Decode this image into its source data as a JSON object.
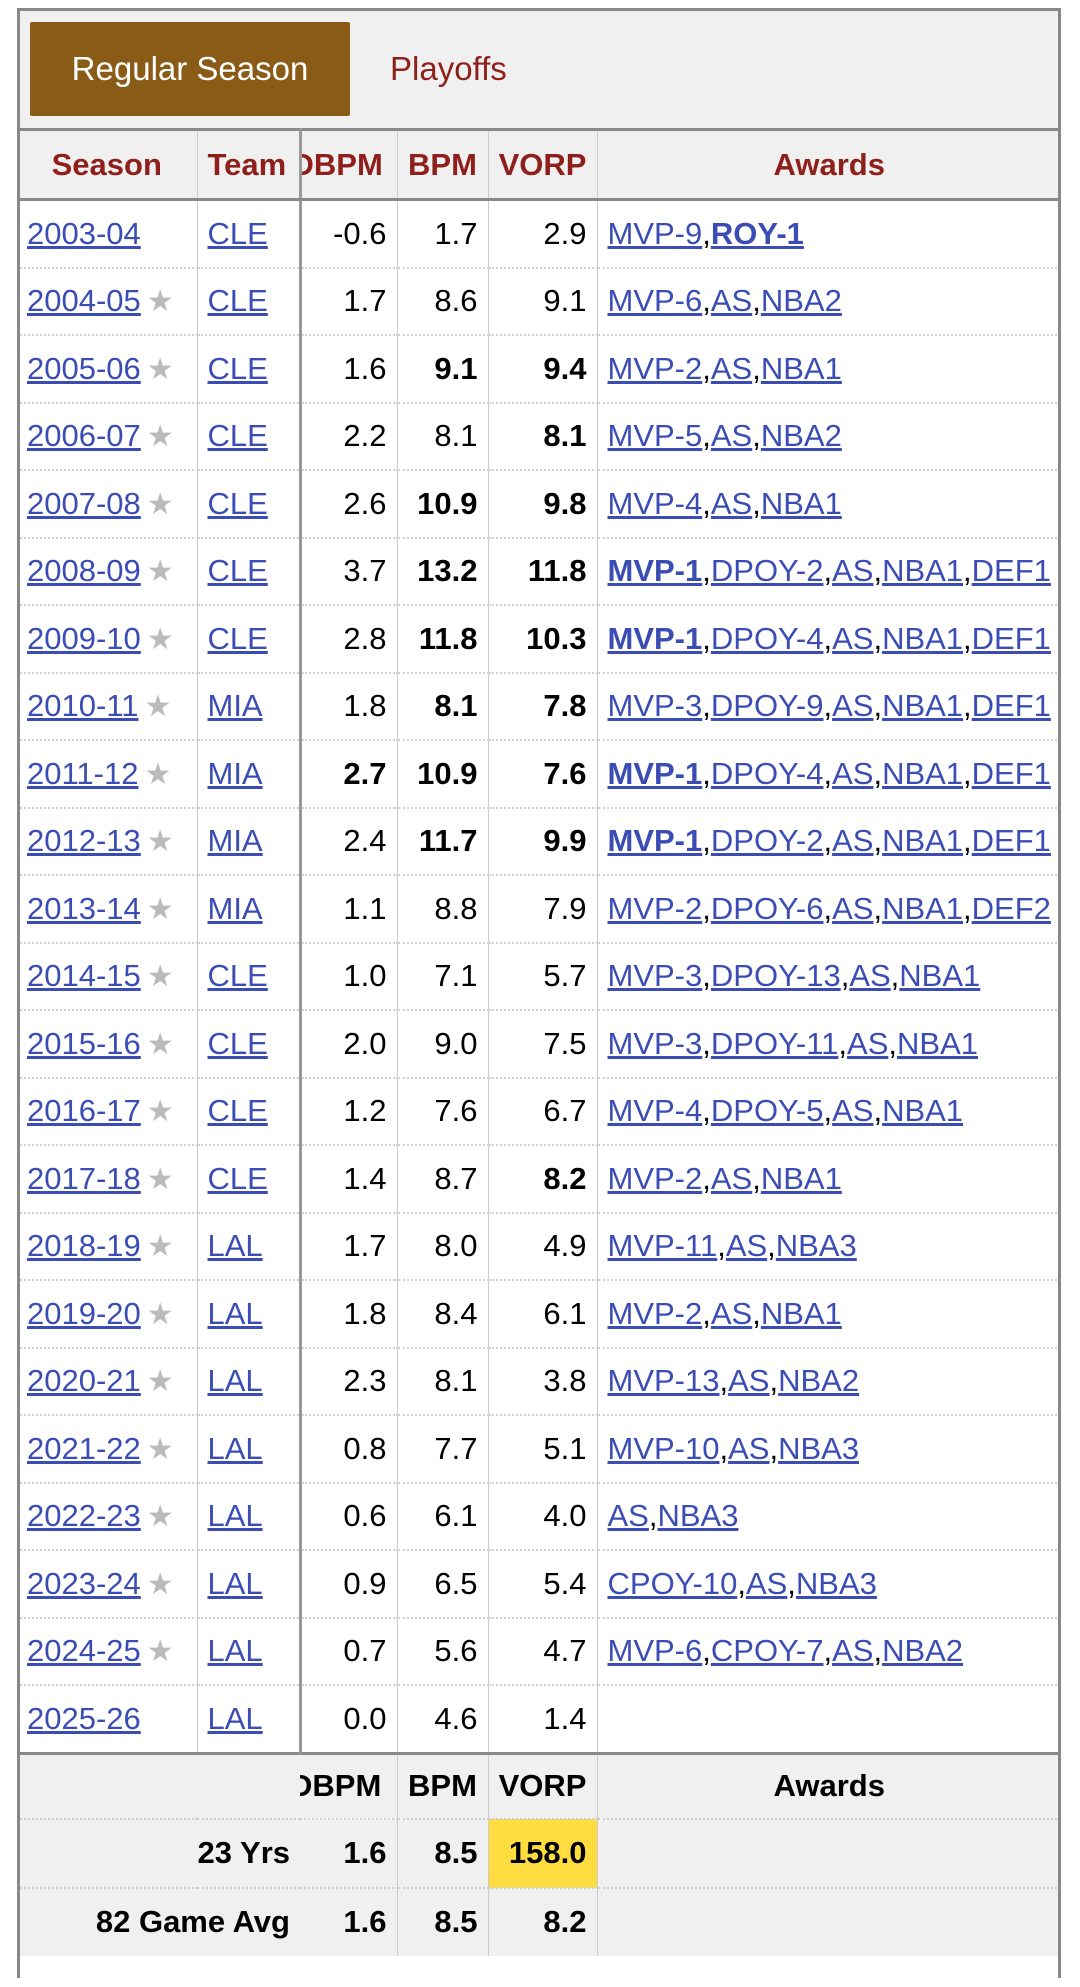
{
  "tabs": {
    "active": "Regular Season",
    "inactive": "Playoffs"
  },
  "headers": {
    "season": "Season",
    "team": "Team",
    "dbpm": "DBPM",
    "bpm": "BPM",
    "vorp": "VORP",
    "awards": "Awards"
  },
  "rows": [
    {
      "season": "2003-04",
      "star": false,
      "team": "CLE",
      "dbpm": "-0.6",
      "bpm": "1.7",
      "vorp": "2.9",
      "awards": [
        {
          "t": "MVP-9",
          "b": false
        },
        {
          "t": "ROY-1",
          "b": true
        }
      ]
    },
    {
      "season": "2004-05",
      "star": true,
      "team": "CLE",
      "dbpm": "1.7",
      "bpm": "8.6",
      "vorp": "9.1",
      "awards": [
        {
          "t": "MVP-6",
          "b": false
        },
        {
          "t": "AS",
          "b": false
        },
        {
          "t": "NBA2",
          "b": false
        }
      ]
    },
    {
      "season": "2005-06",
      "star": true,
      "team": "CLE",
      "dbpm": "1.6",
      "bpm": "9.1",
      "bpmBold": true,
      "vorp": "9.4",
      "vorpBold": true,
      "awards": [
        {
          "t": "MVP-2",
          "b": false
        },
        {
          "t": "AS",
          "b": false
        },
        {
          "t": "NBA1",
          "b": false
        }
      ]
    },
    {
      "season": "2006-07",
      "star": true,
      "team": "CLE",
      "dbpm": "2.2",
      "bpm": "8.1",
      "vorp": "8.1",
      "vorpBold": true,
      "awards": [
        {
          "t": "MVP-5",
          "b": false
        },
        {
          "t": "AS",
          "b": false
        },
        {
          "t": "NBA2",
          "b": false
        }
      ]
    },
    {
      "season": "2007-08",
      "star": true,
      "team": "CLE",
      "dbpm": "2.6",
      "bpm": "10.9",
      "bpmBold": true,
      "vorp": "9.8",
      "vorpBold": true,
      "awards": [
        {
          "t": "MVP-4",
          "b": false
        },
        {
          "t": "AS",
          "b": false
        },
        {
          "t": "NBA1",
          "b": false
        }
      ]
    },
    {
      "season": "2008-09",
      "star": true,
      "team": "CLE",
      "dbpm": "3.7",
      "bpm": "13.2",
      "bpmBold": true,
      "vorp": "11.8",
      "vorpBold": true,
      "awards": [
        {
          "t": "MVP-1",
          "b": true
        },
        {
          "t": "DPOY-2",
          "b": false
        },
        {
          "t": "AS",
          "b": false
        },
        {
          "t": "NBA1",
          "b": false
        },
        {
          "t": "DEF1",
          "b": false
        }
      ]
    },
    {
      "season": "2009-10",
      "star": true,
      "team": "CLE",
      "dbpm": "2.8",
      "bpm": "11.8",
      "bpmBold": true,
      "vorp": "10.3",
      "vorpBold": true,
      "awards": [
        {
          "t": "MVP-1",
          "b": true
        },
        {
          "t": "DPOY-4",
          "b": false
        },
        {
          "t": "AS",
          "b": false
        },
        {
          "t": "NBA1",
          "b": false
        },
        {
          "t": "DEF1",
          "b": false
        }
      ]
    },
    {
      "season": "2010-11",
      "star": true,
      "team": "MIA",
      "dbpm": "1.8",
      "bpm": "8.1",
      "bpmBold": true,
      "vorp": "7.8",
      "vorpBold": true,
      "awards": [
        {
          "t": "MVP-3",
          "b": false
        },
        {
          "t": "DPOY-9",
          "b": false
        },
        {
          "t": "AS",
          "b": false
        },
        {
          "t": "NBA1",
          "b": false
        },
        {
          "t": "DEF1",
          "b": false
        }
      ]
    },
    {
      "season": "2011-12",
      "star": true,
      "team": "MIA",
      "dbpm": "2.7",
      "dbpmBold": true,
      "bpm": "10.9",
      "bpmBold": true,
      "vorp": "7.6",
      "vorpBold": true,
      "awards": [
        {
          "t": "MVP-1",
          "b": true
        },
        {
          "t": "DPOY-4",
          "b": false
        },
        {
          "t": "AS",
          "b": false
        },
        {
          "t": "NBA1",
          "b": false
        },
        {
          "t": "DEF1",
          "b": false
        }
      ]
    },
    {
      "season": "2012-13",
      "star": true,
      "team": "MIA",
      "dbpm": "2.4",
      "bpm": "11.7",
      "bpmBold": true,
      "vorp": "9.9",
      "vorpBold": true,
      "awards": [
        {
          "t": "MVP-1",
          "b": true
        },
        {
          "t": "DPOY-2",
          "b": false
        },
        {
          "t": "AS",
          "b": false
        },
        {
          "t": "NBA1",
          "b": false
        },
        {
          "t": "DEF1",
          "b": false
        }
      ]
    },
    {
      "season": "2013-14",
      "star": true,
      "team": "MIA",
      "dbpm": "1.1",
      "bpm": "8.8",
      "vorp": "7.9",
      "awards": [
        {
          "t": "MVP-2",
          "b": false
        },
        {
          "t": "DPOY-6",
          "b": false
        },
        {
          "t": "AS",
          "b": false
        },
        {
          "t": "NBA1",
          "b": false
        },
        {
          "t": "DEF2",
          "b": false
        }
      ]
    },
    {
      "season": "2014-15",
      "star": true,
      "team": "CLE",
      "dbpm": "1.0",
      "bpm": "7.1",
      "vorp": "5.7",
      "awards": [
        {
          "t": "MVP-3",
          "b": false
        },
        {
          "t": "DPOY-13",
          "b": false
        },
        {
          "t": "AS",
          "b": false
        },
        {
          "t": "NBA1",
          "b": false
        }
      ]
    },
    {
      "season": "2015-16",
      "star": true,
      "team": "CLE",
      "dbpm": "2.0",
      "bpm": "9.0",
      "vorp": "7.5",
      "awards": [
        {
          "t": "MVP-3",
          "b": false
        },
        {
          "t": "DPOY-11",
          "b": false
        },
        {
          "t": "AS",
          "b": false
        },
        {
          "t": "NBA1",
          "b": false
        }
      ]
    },
    {
      "season": "2016-17",
      "star": true,
      "team": "CLE",
      "dbpm": "1.2",
      "bpm": "7.6",
      "vorp": "6.7",
      "awards": [
        {
          "t": "MVP-4",
          "b": false
        },
        {
          "t": "DPOY-5",
          "b": false
        },
        {
          "t": "AS",
          "b": false
        },
        {
          "t": "NBA1",
          "b": false
        }
      ]
    },
    {
      "season": "2017-18",
      "star": true,
      "team": "CLE",
      "dbpm": "1.4",
      "bpm": "8.7",
      "vorp": "8.2",
      "vorpBold": true,
      "awards": [
        {
          "t": "MVP-2",
          "b": false
        },
        {
          "t": "AS",
          "b": false
        },
        {
          "t": "NBA1",
          "b": false
        }
      ]
    },
    {
      "season": "2018-19",
      "star": true,
      "team": "LAL",
      "dbpm": "1.7",
      "bpm": "8.0",
      "vorp": "4.9",
      "awards": [
        {
          "t": "MVP-11",
          "b": false
        },
        {
          "t": "AS",
          "b": false
        },
        {
          "t": "NBA3",
          "b": false
        }
      ]
    },
    {
      "season": "2019-20",
      "star": true,
      "team": "LAL",
      "dbpm": "1.8",
      "bpm": "8.4",
      "vorp": "6.1",
      "awards": [
        {
          "t": "MVP-2",
          "b": false
        },
        {
          "t": "AS",
          "b": false
        },
        {
          "t": "NBA1",
          "b": false
        }
      ]
    },
    {
      "season": "2020-21",
      "star": true,
      "team": "LAL",
      "dbpm": "2.3",
      "bpm": "8.1",
      "vorp": "3.8",
      "awards": [
        {
          "t": "MVP-13",
          "b": false
        },
        {
          "t": "AS",
          "b": false
        },
        {
          "t": "NBA2",
          "b": false
        }
      ]
    },
    {
      "season": "2021-22",
      "star": true,
      "team": "LAL",
      "dbpm": "0.8",
      "bpm": "7.7",
      "vorp": "5.1",
      "awards": [
        {
          "t": "MVP-10",
          "b": false
        },
        {
          "t": "AS",
          "b": false
        },
        {
          "t": "NBA3",
          "b": false
        }
      ]
    },
    {
      "season": "2022-23",
      "star": true,
      "team": "LAL",
      "dbpm": "0.6",
      "bpm": "6.1",
      "vorp": "4.0",
      "awards": [
        {
          "t": "AS",
          "b": false
        },
        {
          "t": "NBA3",
          "b": false
        }
      ]
    },
    {
      "season": "2023-24",
      "star": true,
      "team": "LAL",
      "dbpm": "0.9",
      "bpm": "6.5",
      "vorp": "5.4",
      "awards": [
        {
          "t": "CPOY-10",
          "b": false
        },
        {
          "t": "AS",
          "b": false
        },
        {
          "t": "NBA3",
          "b": false
        }
      ]
    },
    {
      "season": "2024-25",
      "star": true,
      "team": "LAL",
      "dbpm": "0.7",
      "bpm": "5.6",
      "vorp": "4.7",
      "awards": [
        {
          "t": "MVP-6",
          "b": false
        },
        {
          "t": "CPOY-7",
          "b": false
        },
        {
          "t": "AS",
          "b": false
        },
        {
          "t": "NBA2",
          "b": false
        }
      ]
    },
    {
      "season": "2025-26",
      "star": false,
      "team": "LAL",
      "dbpm": "0.0",
      "bpm": "4.6",
      "vorp": "1.4",
      "awards": []
    }
  ],
  "footer": {
    "headers": {
      "dbpm": "DBPM",
      "bpm": "BPM",
      "vorp": "VORP",
      "awards": "Awards"
    },
    "totals": [
      {
        "label": "23 Yrs",
        "dbpm": "1.6",
        "bpm": "8.5",
        "vorp": "158.0",
        "vorpHighlight": true
      },
      {
        "label": "82 Game Avg",
        "dbpm": "1.6",
        "bpm": "8.5",
        "vorp": "8.2",
        "vorpHighlight": false
      }
    ]
  },
  "colors": {
    "tab_active_bg": "#8a5b16",
    "header_text": "#8e1f1b",
    "link": "#3b4db5",
    "highlight": "#ffdc40"
  },
  "icons": {
    "star": "star-icon"
  }
}
